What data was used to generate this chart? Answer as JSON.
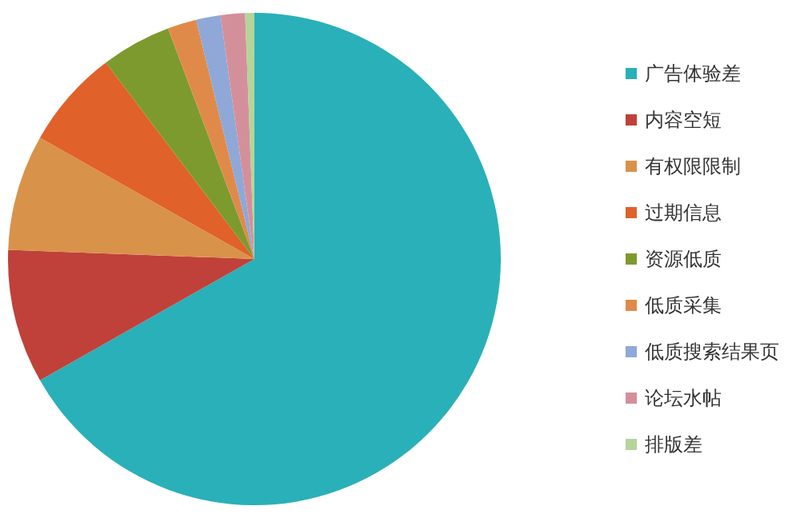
{
  "chart_data": {
    "type": "pie",
    "categories": [
      "广告体验差",
      "内容空短",
      "有权限限制",
      "过期信息",
      "资源低质",
      "低质采集",
      "低质搜索结果页",
      "论坛水帖",
      "排版差"
    ],
    "values": [
      66.8,
      8.8,
      7.6,
      6.5,
      4.6,
      1.9,
      1.6,
      1.6,
      0.6
    ],
    "colors": [
      "#2ab0b8",
      "#c0413a",
      "#d9924a",
      "#e0612a",
      "#7d9a2e",
      "#e08a4a",
      "#8fa8d8",
      "#d4909a",
      "#b5d49a"
    ],
    "legend": "right"
  }
}
